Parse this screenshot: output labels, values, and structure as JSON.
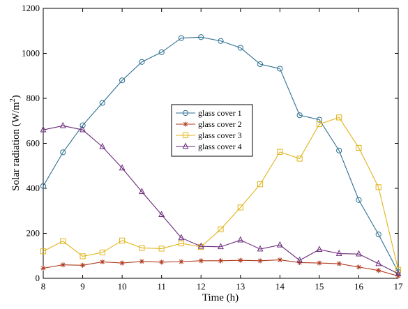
{
  "chart_data": {
    "type": "line",
    "xlabel": "Time (h)",
    "ylabel_main": "Solar radiation (W/m",
    "ylabel_sup": "2",
    "ylabel_tail": ")",
    "xlim": [
      8,
      17
    ],
    "ylim": [
      0,
      1200
    ],
    "xticks": [
      8,
      9,
      10,
      11,
      12,
      13,
      14,
      15,
      16,
      17
    ],
    "yticks": [
      0,
      200,
      400,
      600,
      800,
      1000,
      1200
    ],
    "grid": false,
    "legend_position": "center",
    "x": [
      8,
      8.5,
      9,
      9.5,
      10,
      10.5,
      11,
      11.5,
      12,
      12.5,
      13,
      13.5,
      14,
      14.5,
      15,
      15.5,
      16,
      16.5,
      17
    ],
    "series": [
      {
        "name": "glass cover 1",
        "color": "#2c6e91",
        "marker": "circle",
        "values": [
          410,
          560,
          680,
          780,
          880,
          962,
          1005,
          1068,
          1072,
          1055,
          1025,
          952,
          932,
          725,
          705,
          568,
          348,
          195,
          28
        ]
      },
      {
        "name": "glass cover 2",
        "color": "#b03a1f",
        "marker": "star",
        "values": [
          45,
          60,
          58,
          73,
          68,
          75,
          72,
          74,
          78,
          78,
          80,
          78,
          82,
          70,
          68,
          65,
          50,
          35,
          10
        ]
      },
      {
        "name": "glass cover 3",
        "color": "#e0b41a",
        "marker": "square",
        "values": [
          120,
          165,
          98,
          115,
          168,
          135,
          132,
          155,
          140,
          218,
          315,
          418,
          562,
          532,
          685,
          715,
          580,
          405,
          38
        ]
      },
      {
        "name": "glass cover 4",
        "color": "#6a2a7a",
        "marker": "triangle",
        "values": [
          660,
          678,
          660,
          585,
          490,
          385,
          283,
          180,
          142,
          140,
          170,
          130,
          148,
          80,
          128,
          110,
          108,
          65,
          20
        ]
      }
    ]
  }
}
